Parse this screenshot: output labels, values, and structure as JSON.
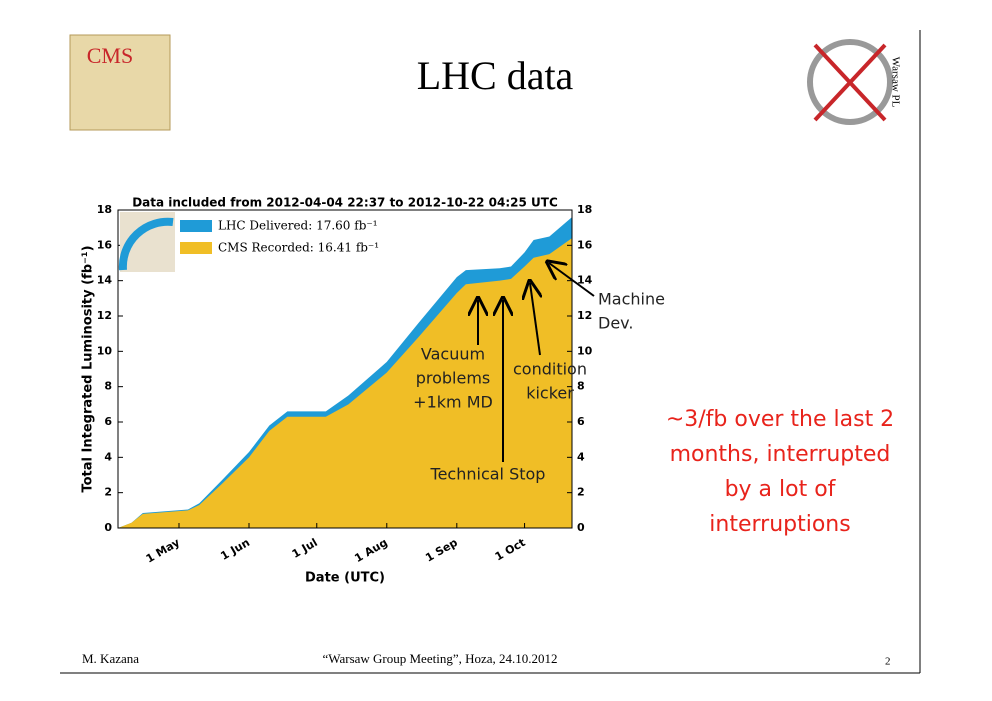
{
  "slide": {
    "title": "LHC data",
    "logo_left": "CMS",
    "logo_right": "Warsaw PL",
    "note_lines": [
      "~3/fb over the last 2",
      "months, interrupted",
      "by a lot of",
      "interruptions"
    ],
    "footer": {
      "author": "M. Kazana",
      "event": "“Warsaw Group Meeting”, Hoza, 24.10.2012",
      "page": "2"
    }
  },
  "chart_data": {
    "type": "area",
    "title": "Data included from 2012-04-04 22:37 to 2012-10-22 04:25 UTC",
    "x_label": "Date (UTC)",
    "y_label": "Total Integrated Luminosity (fb⁻¹)",
    "x": [
      "2012-04-04",
      "2012-04-10",
      "2012-04-15",
      "2012-04-25",
      "2012-05-05",
      "2012-05-10",
      "2012-05-20",
      "2012-06-01",
      "2012-06-10",
      "2012-06-18",
      "2012-07-05",
      "2012-07-15",
      "2012-08-01",
      "2012-08-15",
      "2012-09-01",
      "2012-09-05",
      "2012-09-20",
      "2012-09-25",
      "2012-10-01",
      "2012-10-05",
      "2012-10-12",
      "2012-10-22"
    ],
    "series": [
      {
        "name": "LHC Delivered: 17.60 fb⁻¹",
        "color": "#1f9bd7",
        "values": [
          0,
          0.3,
          0.85,
          0.95,
          1.05,
          1.4,
          2.7,
          4.3,
          5.8,
          6.6,
          6.6,
          7.5,
          9.4,
          11.6,
          14.2,
          14.6,
          14.7,
          14.8,
          15.6,
          16.3,
          16.5,
          17.6
        ]
      },
      {
        "name": "CMS Recorded: 16.41 fb⁻¹",
        "color": "#f0be26",
        "values": [
          0,
          0.3,
          0.8,
          0.9,
          1.0,
          1.3,
          2.5,
          4.0,
          5.5,
          6.3,
          6.3,
          7.0,
          8.8,
          10.8,
          13.3,
          13.8,
          14.0,
          14.1,
          14.8,
          15.3,
          15.5,
          16.41
        ]
      }
    ],
    "xlim": [
      "2012-04-04",
      "2012-10-22"
    ],
    "xticks": [
      {
        "value": "2012-05-01",
        "label": "1 May"
      },
      {
        "value": "2012-06-01",
        "label": "1 Jun"
      },
      {
        "value": "2012-07-01",
        "label": "1 Jul"
      },
      {
        "value": "2012-08-01",
        "label": "1 Aug"
      },
      {
        "value": "2012-09-01",
        "label": "1 Sep"
      },
      {
        "value": "2012-10-01",
        "label": "1 Oct"
      }
    ],
    "ylim": [
      0,
      18
    ],
    "yticks": [
      0,
      2,
      4,
      6,
      8,
      10,
      12,
      14,
      16,
      18
    ],
    "grid": false,
    "annotations": [
      [
        "Vacuum",
        "problems",
        "+1km MD"
      ],
      [
        "condition",
        "kicker"
      ],
      [
        "Technical Stop"
      ],
      [
        "Machine",
        "Dev."
      ]
    ]
  }
}
